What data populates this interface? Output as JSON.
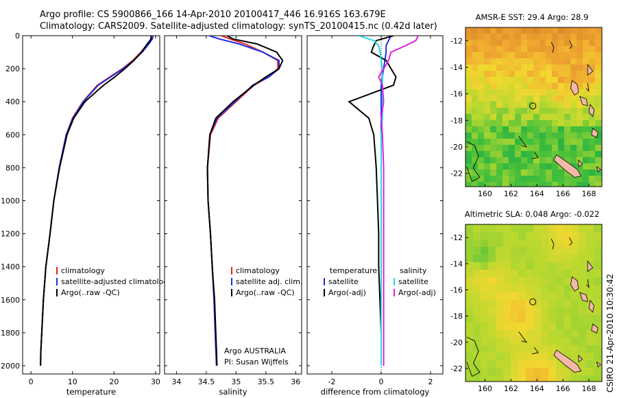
{
  "header": {
    "line1": "Argo profile: CS 5900866_166 14-Apr-2010 20100417_446 16.916S 163.679E",
    "line2": "Climatology: CARS2009. Satellite-adjusted climatology: synTS_20100415.nc (0.42d later)"
  },
  "side_label": "CSIRO 21-Apr-2010 10:30:42",
  "colors": {
    "clim": "#e8231c",
    "sat": "#1f2ae6",
    "argo": "#000000",
    "sat_sal": "#1fd9e6",
    "argo_sal": "#e020e0"
  },
  "chart_data": [
    {
      "type": "line",
      "name": "temperature-profile",
      "xlabel": "temperature",
      "ylabel": "",
      "xlim": [
        -2,
        31
      ],
      "ylim": [
        2050,
        0
      ],
      "xticks": [
        0,
        10,
        20,
        30
      ],
      "yticks": [
        0,
        200,
        400,
        600,
        800,
        1000,
        1200,
        1400,
        1600,
        1800,
        2000
      ],
      "legend": [
        "climatology",
        "satellite-adjusted climatology",
        "Argo(..raw -QC)"
      ],
      "series": [
        {
          "name": "climatology",
          "color": "clim",
          "x": [
            29.0,
            28.9,
            28.2,
            26.5,
            24.5,
            22.0,
            19.0,
            16.0,
            12.5,
            10.0,
            8.5,
            6.8,
            5.5,
            4.6,
            3.6,
            3.0,
            2.6,
            2.4,
            2.3
          ],
          "y": [
            0,
            20,
            50,
            100,
            150,
            200,
            250,
            300,
            400,
            500,
            600,
            800,
            1000,
            1200,
            1400,
            1600,
            1800,
            1900,
            1950
          ]
        },
        {
          "name": "satellite-adjusted climatology",
          "color": "sat",
          "x": [
            29.4,
            29.2,
            28.4,
            26.8,
            24.7,
            22.2,
            19.2,
            16.2,
            12.6,
            10.1,
            8.5,
            6.8,
            5.5,
            4.6,
            3.6,
            3.0,
            2.6,
            2.4,
            2.3
          ],
          "y": [
            0,
            20,
            50,
            100,
            150,
            200,
            250,
            300,
            400,
            500,
            600,
            800,
            1000,
            1200,
            1400,
            1600,
            1800,
            1900,
            2000
          ]
        },
        {
          "name": "Argo(..raw -QC)",
          "color": "argo",
          "x": [
            28.9,
            28.9,
            28.0,
            26.6,
            24.8,
            22.6,
            20.2,
            17.5,
            13.0,
            10.3,
            8.7,
            6.9,
            5.5,
            4.6,
            3.6,
            3.0,
            2.6,
            2.4,
            2.3
          ],
          "y": [
            0,
            20,
            50,
            100,
            150,
            200,
            250,
            300,
            400,
            500,
            600,
            800,
            1000,
            1200,
            1400,
            1600,
            1800,
            1900,
            2000
          ]
        }
      ]
    },
    {
      "type": "line",
      "name": "salinity-profile",
      "xlabel": "salinity",
      "ylabel": "",
      "xlim": [
        33.8,
        36.1
      ],
      "ylim": [
        2050,
        0
      ],
      "xticks": [
        34,
        34.5,
        35,
        35.5,
        36
      ],
      "legend": [
        "climatology",
        "satellite adj. clim.",
        "Argo(..raw -QC)"
      ],
      "annotations": [
        "Argo AUSTRALIA",
        "PI: Susan Wijffels"
      ],
      "series": [
        {
          "name": "climatology",
          "color": "clim",
          "x": [
            34.75,
            34.9,
            35.15,
            35.45,
            35.7,
            35.7,
            35.55,
            35.3,
            35.0,
            34.7,
            34.57,
            34.52,
            34.53,
            34.57,
            34.6,
            34.63,
            34.65,
            34.66,
            34.67
          ],
          "y": [
            0,
            20,
            50,
            100,
            150,
            200,
            250,
            300,
            400,
            500,
            600,
            800,
            1000,
            1200,
            1400,
            1600,
            1800,
            1900,
            1950
          ]
        },
        {
          "name": "satellite adj. clim.",
          "color": "sat",
          "x": [
            34.55,
            34.72,
            35.05,
            35.45,
            35.72,
            35.72,
            35.55,
            35.28,
            34.98,
            34.68,
            34.56,
            34.52,
            34.53,
            34.57,
            34.6,
            34.63,
            34.65,
            34.66,
            34.67
          ],
          "y": [
            0,
            20,
            50,
            100,
            150,
            200,
            250,
            300,
            400,
            500,
            600,
            800,
            1000,
            1200,
            1400,
            1600,
            1800,
            1900,
            2000
          ]
        },
        {
          "name": "Argo(..raw -QC)",
          "color": "argo",
          "x": [
            34.85,
            34.95,
            35.35,
            35.68,
            35.78,
            35.72,
            35.5,
            35.3,
            34.95,
            34.66,
            34.56,
            34.52,
            34.53,
            34.57,
            34.6,
            34.64,
            34.66,
            34.67,
            34.68
          ],
          "y": [
            0,
            20,
            50,
            100,
            150,
            200,
            250,
            300,
            400,
            500,
            600,
            800,
            1000,
            1200,
            1400,
            1600,
            1800,
            1900,
            2000
          ]
        }
      ]
    },
    {
      "type": "line",
      "name": "difference-profile",
      "xlabel": "difference from climatology",
      "ylabel": "",
      "xlim": [
        -3,
        2.5
      ],
      "ylim": [
        2050,
        0
      ],
      "xticks": [
        -2,
        0,
        2
      ],
      "legend": [
        "temperature",
        "satellite",
        "Argo(-adj)",
        "salinity",
        "satellite",
        "Argo(-adj)"
      ],
      "series": [
        {
          "name": "temperature satellite",
          "color": "sat",
          "x": [
            0.4,
            0.3,
            0.2,
            0.2,
            0.15,
            0.1,
            0.05,
            0.0,
            0.0,
            0.0,
            0.0,
            0.0,
            0.0,
            0.0,
            0.0,
            0.0,
            0.0,
            0.0
          ],
          "y": [
            0,
            30,
            60,
            100,
            150,
            200,
            250,
            300,
            400,
            500,
            600,
            800,
            1000,
            1200,
            1400,
            1600,
            1800,
            2000
          ]
        },
        {
          "name": "temperature Argo(-adj)",
          "color": "argo",
          "x": [
            0.5,
            -0.2,
            -0.3,
            -0.4,
            0.2,
            0.4,
            0.6,
            0.5,
            -1.3,
            -0.5,
            -0.3,
            -0.2,
            -0.15,
            -0.1,
            -0.1,
            -0.05,
            0.0,
            0.0
          ],
          "y": [
            0,
            30,
            60,
            100,
            150,
            200,
            250,
            300,
            400,
            500,
            600,
            800,
            1000,
            1200,
            1400,
            1600,
            1800,
            2000
          ]
        },
        {
          "name": "salinity satellite",
          "color": "sat_sal",
          "x": [
            -0.9,
            -0.3,
            -0.1,
            -0.05,
            0.0,
            0.05,
            0.05,
            0.05,
            0.05,
            0.05,
            0.0,
            0.0,
            0.0,
            0.0,
            0.0,
            0.0,
            0.0,
            0.0
          ],
          "y": [
            0,
            30,
            60,
            100,
            150,
            200,
            250,
            300,
            400,
            500,
            600,
            800,
            1000,
            1200,
            1400,
            1600,
            1800,
            2000
          ]
        },
        {
          "name": "salinity Argo(-adj)",
          "color": "argo_sal",
          "x": [
            1.5,
            1.4,
            1.0,
            0.4,
            0.3,
            0.1,
            -0.1,
            0.05,
            0.1,
            0.0,
            0.05,
            0.1,
            0.1,
            0.1,
            0.1,
            0.1,
            0.1,
            0.1
          ],
          "y": [
            0,
            30,
            60,
            100,
            150,
            200,
            250,
            300,
            400,
            500,
            600,
            800,
            1000,
            1200,
            1400,
            1600,
            1800,
            2000
          ]
        }
      ]
    },
    {
      "type": "heatmap",
      "name": "sst-map",
      "title": "AMSR-E SST: 29.4 Argo: 28.9",
      "xlim": [
        158.5,
        169
      ],
      "ylim": [
        -23,
        -11
      ],
      "xticks": [
        160,
        162,
        164,
        166,
        168
      ],
      "yticks": [
        -12,
        -14,
        -16,
        -18,
        -20,
        -22
      ],
      "marker": {
        "lon": 163.679,
        "lat": -16.916
      }
    },
    {
      "type": "heatmap",
      "name": "sla-map",
      "title": "Altimetric SLA: 0.048 Argo: -0.022",
      "xlim": [
        158.5,
        169
      ],
      "ylim": [
        -23,
        -11
      ],
      "xticks": [
        160,
        162,
        164,
        166,
        168
      ],
      "yticks": [
        -12,
        -14,
        -16,
        -18,
        -20,
        -22
      ],
      "marker": {
        "lon": 163.679,
        "lat": -16.916
      }
    }
  ]
}
